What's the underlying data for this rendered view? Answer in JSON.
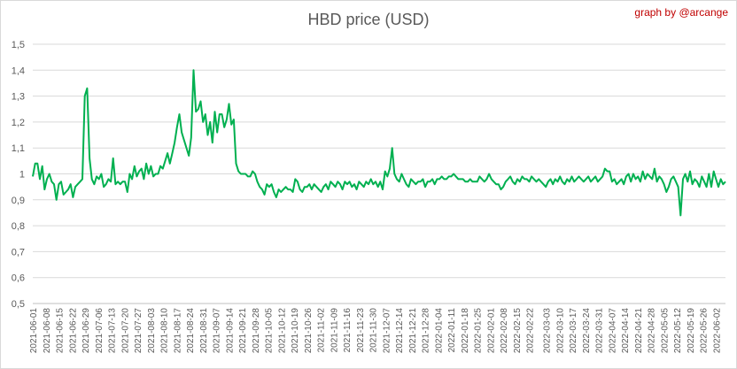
{
  "header": {
    "title": "HBD price (USD)",
    "credit": "graph by @arcange"
  },
  "chart_data": {
    "type": "line",
    "title": "HBD price (USD)",
    "xlabel": "",
    "ylabel": "",
    "ylim": [
      0.5,
      1.5
    ],
    "yticks": [
      "1,5",
      "1,4",
      "1,3",
      "1,2",
      "1,1",
      "1",
      "0,9",
      "0,8",
      "0,7",
      "0,6",
      "0,5"
    ],
    "ytick_values": [
      1.5,
      1.4,
      1.3,
      1.2,
      1.1,
      1.0,
      0.9,
      0.8,
      0.7,
      0.6,
      0.5
    ],
    "grid": true,
    "legend": "none",
    "series_color": "#00b050",
    "x_start": "2021-06-01",
    "x_end": "2022-06-07",
    "xtick_labels": [
      "2021-06-01",
      "2021-06-08",
      "2021-06-15",
      "2021-06-22",
      "2021-06-29",
      "2021-07-06",
      "2021-07-13",
      "2021-07-20",
      "2021-07-27",
      "2021-08-03",
      "2021-08-10",
      "2021-08-17",
      "2021-08-24",
      "2021-08-31",
      "2021-09-07",
      "2021-09-14",
      "2021-09-21",
      "2021-09-28",
      "2021-10-05",
      "2021-10-12",
      "2021-10-19",
      "2021-10-26",
      "2021-11-02",
      "2021-11-09",
      "2021-11-16",
      "2021-11-23",
      "2021-11-30",
      "2021-12-07",
      "2021-12-14",
      "2021-12-21",
      "2021-12-28",
      "2022-01-04",
      "2022-01-11",
      "2022-01-18",
      "2022-01-25",
      "2022-02-01",
      "2022-02-08",
      "2022-02-15",
      "2022-02-22",
      "2022-03-03",
      "2022-03-10",
      "2022-03-17",
      "2022-03-24",
      "2022-03-31",
      "2022-04-07",
      "2022-04-14",
      "2022-04-21",
      "2022-04-28",
      "2022-05-05",
      "2022-05-12",
      "2022-05-19",
      "2022-05-26",
      "2022-06-02"
    ],
    "series": [
      {
        "values": [
          0.99,
          1.04,
          1.04,
          0.98,
          1.03,
          0.94,
          0.98,
          1.0,
          0.97,
          0.96,
          0.9,
          0.96,
          0.97,
          0.92,
          0.93,
          0.94,
          0.96,
          0.91,
          0.95,
          0.96,
          0.97,
          0.98,
          1.3,
          1.33,
          1.06,
          0.98,
          0.96,
          0.99,
          0.98,
          1.0,
          0.95,
          0.96,
          0.98,
          0.97,
          1.06,
          0.96,
          0.97,
          0.96,
          0.97,
          0.97,
          0.93,
          1.0,
          0.98,
          1.03,
          0.99,
          1.01,
          1.02,
          0.98,
          1.04,
          1.0,
          1.03,
          0.99,
          1.0,
          1.0,
          1.03,
          1.02,
          1.05,
          1.08,
          1.04,
          1.08,
          1.12,
          1.18,
          1.23,
          1.16,
          1.13,
          1.1,
          1.07,
          1.14,
          1.4,
          1.24,
          1.25,
          1.28,
          1.2,
          1.23,
          1.15,
          1.2,
          1.12,
          1.24,
          1.16,
          1.23,
          1.23,
          1.18,
          1.21,
          1.27,
          1.19,
          1.21,
          1.04,
          1.01,
          1.0,
          1.0,
          1.0,
          0.99,
          0.99,
          1.01,
          1.0,
          0.97,
          0.95,
          0.94,
          0.92,
          0.96,
          0.95,
          0.96,
          0.93,
          0.91,
          0.94,
          0.93,
          0.94,
          0.95,
          0.94,
          0.94,
          0.93,
          0.98,
          0.97,
          0.94,
          0.93,
          0.95,
          0.95,
          0.96,
          0.94,
          0.96,
          0.95,
          0.94,
          0.93,
          0.95,
          0.96,
          0.94,
          0.97,
          0.96,
          0.95,
          0.97,
          0.96,
          0.94,
          0.97,
          0.96,
          0.97,
          0.95,
          0.96,
          0.94,
          0.97,
          0.96,
          0.95,
          0.97,
          0.96,
          0.98,
          0.96,
          0.97,
          0.95,
          0.97,
          0.94,
          1.01,
          0.99,
          1.02,
          1.1,
          1.0,
          0.98,
          0.97,
          1.0,
          0.98,
          0.96,
          0.95,
          0.98,
          0.97,
          0.96,
          0.97,
          0.97,
          0.98,
          0.95,
          0.97,
          0.97,
          0.98,
          0.96,
          0.98,
          0.98,
          0.99,
          0.98,
          0.98,
          0.99,
          0.99,
          1.0,
          0.99,
          0.98,
          0.98,
          0.98,
          0.97,
          0.97,
          0.98,
          0.97,
          0.97,
          0.97,
          0.99,
          0.98,
          0.97,
          0.98,
          1.0,
          0.98,
          0.97,
          0.96,
          0.96,
          0.94,
          0.95,
          0.97,
          0.98,
          0.99,
          0.97,
          0.96,
          0.98,
          0.97,
          0.99,
          0.98,
          0.98,
          0.97,
          0.99,
          0.98,
          0.97,
          0.98,
          0.97,
          0.96,
          0.95,
          0.97,
          0.98,
          0.96,
          0.98,
          0.97,
          0.99,
          0.97,
          0.96,
          0.98,
          0.97,
          0.99,
          0.97,
          0.98,
          0.99,
          0.98,
          0.97,
          0.98,
          0.99,
          0.97,
          0.98,
          0.99,
          0.97,
          0.98,
          0.99,
          1.02,
          1.01,
          1.01,
          0.97,
          0.98,
          0.96,
          0.97,
          0.98,
          0.96,
          0.99,
          1.0,
          0.97,
          1.0,
          0.98,
          0.99,
          0.97,
          1.01,
          0.98,
          1.0,
          0.99,
          0.98,
          1.02,
          0.97,
          0.99,
          0.98,
          0.96,
          0.93,
          0.95,
          0.98,
          0.99,
          0.97,
          0.95,
          0.84,
          0.98,
          1.0,
          0.97,
          1.01,
          0.96,
          0.98,
          0.97,
          0.95,
          0.99,
          0.97,
          0.95,
          1.0,
          0.95,
          1.01,
          0.98,
          0.95,
          0.98,
          0.96,
          0.97
        ]
      }
    ]
  }
}
